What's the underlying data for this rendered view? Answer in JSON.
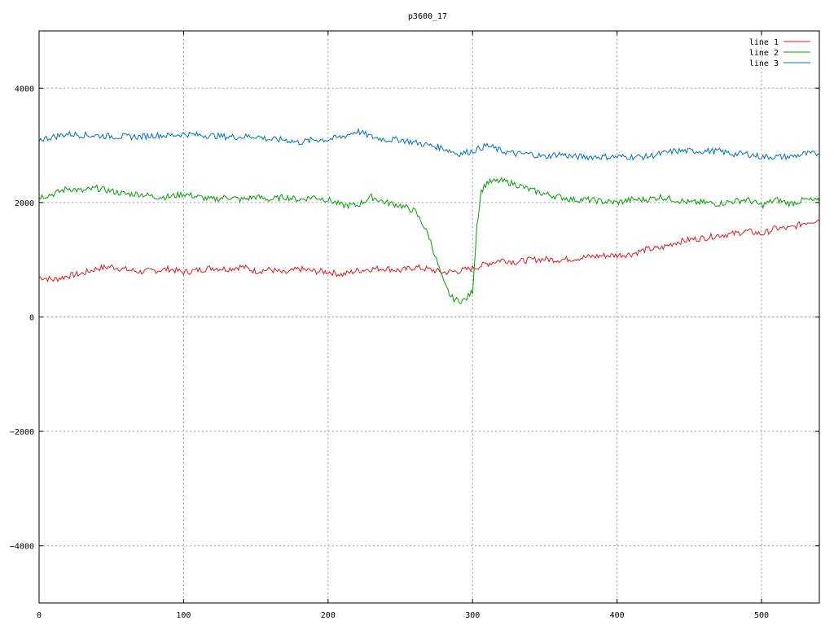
{
  "chart_data": {
    "type": "line",
    "title": "p3600_17",
    "xlabel": "",
    "ylabel": "",
    "xlim": [
      0,
      540
    ],
    "ylim": [
      -5000,
      5000
    ],
    "x_ticks": [
      0,
      100,
      200,
      300,
      400,
      500
    ],
    "y_ticks": [
      -4000,
      -2000,
      0,
      2000,
      4000
    ],
    "y_tick_labels": [
      "−4000",
      "−2000",
      "0",
      "2000",
      "4000"
    ],
    "grid": true,
    "legend_position": "top-right",
    "series": [
      {
        "name": "line 1",
        "color": "#e41a1c",
        "x": [
          0,
          10,
          20,
          30,
          40,
          50,
          60,
          70,
          80,
          90,
          100,
          110,
          120,
          130,
          140,
          150,
          160,
          170,
          180,
          190,
          200,
          210,
          220,
          230,
          240,
          250,
          260,
          270,
          280,
          290,
          300,
          310,
          320,
          330,
          340,
          350,
          360,
          370,
          380,
          390,
          400,
          410,
          420,
          430,
          440,
          450,
          460,
          470,
          480,
          490,
          500,
          510,
          520,
          530,
          540
        ],
        "y": [
          700,
          650,
          720,
          760,
          850,
          880,
          830,
          790,
          810,
          840,
          780,
          820,
          860,
          840,
          880,
          800,
          830,
          760,
          840,
          800,
          790,
          740,
          810,
          840,
          850,
          810,
          870,
          830,
          780,
          800,
          850,
          930,
          1000,
          960,
          1000,
          1010,
          1000,
          1020,
          1050,
          1070,
          1080,
          1100,
          1180,
          1200,
          1300,
          1350,
          1380,
          1430,
          1450,
          1500,
          1450,
          1550,
          1550,
          1650,
          1700
        ]
      },
      {
        "name": "line 2",
        "color": "#00a000",
        "x": [
          0,
          10,
          20,
          30,
          40,
          50,
          60,
          70,
          80,
          90,
          100,
          110,
          120,
          130,
          140,
          150,
          160,
          170,
          180,
          190,
          200,
          210,
          220,
          230,
          240,
          250,
          260,
          265,
          270,
          275,
          280,
          285,
          290,
          295,
          300,
          303,
          306,
          310,
          320,
          330,
          340,
          350,
          360,
          370,
          380,
          390,
          400,
          410,
          420,
          430,
          440,
          450,
          460,
          470,
          480,
          490,
          500,
          510,
          520,
          530,
          540
        ],
        "y": [
          2100,
          2150,
          2250,
          2200,
          2250,
          2200,
          2150,
          2150,
          2100,
          2100,
          2150,
          2100,
          2050,
          2100,
          2050,
          2100,
          2050,
          2100,
          2050,
          2100,
          2050,
          1950,
          1950,
          2100,
          2000,
          1950,
          1850,
          1650,
          1400,
          1000,
          600,
          350,
          280,
          300,
          450,
          1600,
          2200,
          2350,
          2380,
          2320,
          2220,
          2150,
          2100,
          2050,
          2050,
          2020,
          2000,
          2050,
          2050,
          2100,
          2050,
          2000,
          2000,
          1980,
          2020,
          2050,
          1950,
          2050,
          1980,
          2050,
          2020
        ]
      },
      {
        "name": "line 3",
        "color": "#0072bd",
        "x": [
          0,
          10,
          20,
          30,
          40,
          50,
          60,
          70,
          80,
          90,
          100,
          110,
          120,
          130,
          140,
          150,
          160,
          170,
          180,
          190,
          200,
          210,
          220,
          230,
          240,
          250,
          260,
          270,
          280,
          290,
          300,
          310,
          320,
          330,
          340,
          350,
          360,
          370,
          380,
          390,
          400,
          410,
          420,
          430,
          440,
          450,
          460,
          470,
          480,
          490,
          500,
          510,
          520,
          530,
          540
        ],
        "y": [
          3100,
          3150,
          3200,
          3180,
          3170,
          3160,
          3150,
          3150,
          3180,
          3170,
          3200,
          3180,
          3170,
          3150,
          3150,
          3160,
          3100,
          3100,
          3050,
          3100,
          3100,
          3150,
          3250,
          3150,
          3100,
          3100,
          3050,
          3000,
          2950,
          2850,
          2900,
          3000,
          2900,
          2850,
          2850,
          2800,
          2850,
          2800,
          2800,
          2800,
          2800,
          2800,
          2800,
          2850,
          2900,
          2900,
          2900,
          2900,
          2850,
          2850,
          2800,
          2800,
          2800,
          2850,
          2850
        ]
      }
    ]
  }
}
